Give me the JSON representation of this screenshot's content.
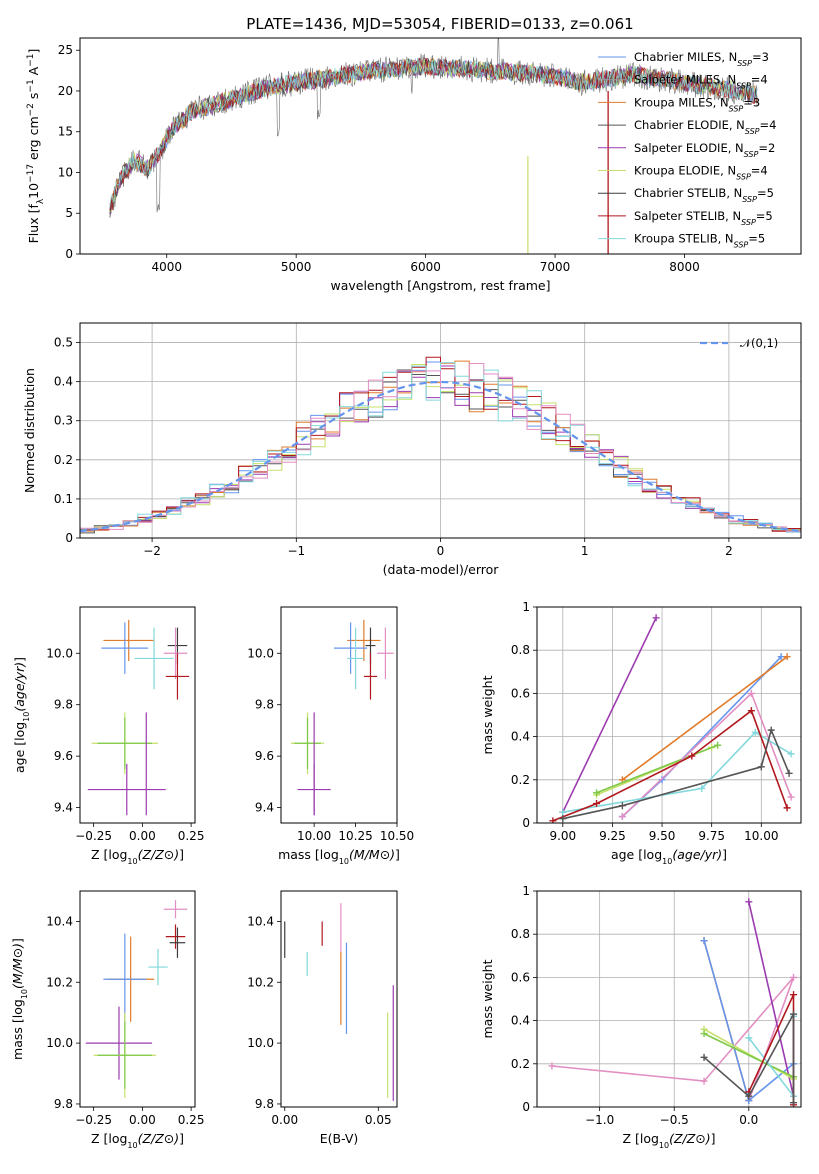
{
  "figure": {
    "title": "PLATE=1436, MJD=53054, FIBERID=0133, z=0.061"
  },
  "colors": [
    "#6495ed",
    "#9e9e9e",
    "#e07b2a",
    "#555555",
    "#9c3ab0",
    "#c6e06a",
    "#3c3c3c",
    "#b0181e",
    "#82d8dc",
    "#e38ec2",
    "#7ec94a"
  ],
  "chart_data": [
    {
      "type": "line",
      "title": "PLATE=1436, MJD=53054, FIBERID=0133, z=0.061",
      "xlabel": "wavelength [Angstrom, rest frame]",
      "ylabel": "Flux [f_λ 10^-17 erg cm^-2 s^-1 A^-1]",
      "xlim": [
        3330,
        8900
      ],
      "ylim": [
        0,
        26.5
      ],
      "xticks": [
        4000,
        5000,
        6000,
        7000,
        8000
      ],
      "yticks": [
        0,
        5,
        10,
        15,
        20,
        25
      ],
      "legend_position": "upper right",
      "continuum": {
        "x": [
          3560,
          3650,
          3750,
          3850,
          3950,
          4050,
          4200,
          4400,
          4600,
          4800,
          5000,
          5200,
          5400,
          5600,
          5800,
          6000,
          6200,
          6400,
          6600,
          6800,
          7000,
          7200,
          7400,
          7600,
          7800,
          8000,
          8200,
          8400,
          8560
        ],
        "y": [
          5.5,
          9.5,
          11.5,
          10.5,
          12.5,
          15.5,
          17.5,
          18.5,
          19.5,
          20.5,
          21.0,
          21.5,
          22.0,
          22.5,
          22.8,
          23.0,
          22.8,
          22.6,
          22.4,
          22.2,
          21.8,
          21.0,
          21.5,
          22.0,
          21.5,
          21.0,
          20.5,
          20.0,
          19.5
        ]
      },
      "series": [
        {
          "name": "Chabrier MILES, N_SSP=3",
          "color": "#6495ed"
        },
        {
          "name": "Salpeter MILES, N_SSP=4",
          "color": "#9e9e9e"
        },
        {
          "name": "Kroupa MILES, N_SSP=3",
          "color": "#e07b2a"
        },
        {
          "name": "Chabrier ELODIE, N_SSP=4",
          "color": "#555555"
        },
        {
          "name": "Salpeter ELODIE, N_SSP=2",
          "color": "#9c3ab0"
        },
        {
          "name": "Kroupa ELODIE, N_SSP=4",
          "color": "#c6e06a"
        },
        {
          "name": "Chabrier STELIB, N_SSP=5",
          "color": "#3c3c3c"
        },
        {
          "name": "Salpeter STELIB, N_SSP=5",
          "color": "#b0181e"
        },
        {
          "name": "Kroupa STELIB, N_SSP=5",
          "color": "#82d8dc"
        }
      ]
    },
    {
      "type": "histogram",
      "xlabel": "(data-model)/error",
      "ylabel": "Normed distribution",
      "xlim": [
        -2.5,
        2.5
      ],
      "ylim": [
        0,
        0.55
      ],
      "xticks": [
        -2,
        -1,
        0,
        1,
        2
      ],
      "xticklabels": [
        "−2",
        "−1",
        "0",
        "1",
        "2"
      ],
      "yticks": [
        0.0,
        0.1,
        0.2,
        0.3,
        0.4,
        0.5
      ],
      "grid": true,
      "legend_position": "upper right",
      "bin_width": 0.1,
      "reference_curve": {
        "name": "𝒩(0,1)",
        "color": "#6495ed",
        "style": "dashed",
        "mean": 0,
        "sigma": 1
      },
      "series": [
        {
          "color": "#6495ed",
          "seed": 1
        },
        {
          "color": "#e07b2a",
          "seed": 2
        },
        {
          "color": "#555555",
          "seed": 3
        },
        {
          "color": "#9c3ab0",
          "seed": 4
        },
        {
          "color": "#c6e06a",
          "seed": 5
        },
        {
          "color": "#b0181e",
          "seed": 6
        },
        {
          "color": "#82d8dc",
          "seed": 7
        },
        {
          "color": "#e38ec2",
          "seed": 8
        }
      ]
    },
    {
      "type": "errorbar",
      "xlabel": "Z [log10(Z/Z⊙)]",
      "ylabel": "age  [log10(age/yr)]",
      "xlim": [
        -0.32,
        0.27
      ],
      "ylim": [
        9.34,
        10.18
      ],
      "xticks": [
        -0.25,
        0.0,
        0.25
      ],
      "xticklabels": [
        "−0.25",
        "0.00",
        "0.25"
      ],
      "yticks": [
        9.4,
        9.6,
        9.8,
        10.0
      ],
      "yticklabels": [
        "9.4",
        "9.6",
        "9.8",
        "10.0"
      ],
      "points": [
        {
          "x": -0.07,
          "y": 10.05,
          "xerr": 0.13,
          "yerr": 0.08,
          "color": "#e07b2a"
        },
        {
          "x": -0.09,
          "y": 10.02,
          "xerr": 0.12,
          "yerr": 0.1,
          "color": "#6495ed"
        },
        {
          "x": 0.18,
          "y": 10.03,
          "xerr": 0.05,
          "yerr": 0.07,
          "color": "#3c3c3c"
        },
        {
          "x": 0.17,
          "y": 10.0,
          "xerr": 0.06,
          "yerr": 0.1,
          "color": "#e38ec2"
        },
        {
          "x": 0.06,
          "y": 9.98,
          "xerr": 0.1,
          "yerr": 0.12,
          "color": "#82d8dc"
        },
        {
          "x": 0.18,
          "y": 9.91,
          "xerr": 0.06,
          "yerr": 0.09,
          "color": "#b0181e"
        },
        {
          "x": -0.09,
          "y": 9.65,
          "xerr": 0.17,
          "yerr": 0.12,
          "color": "#c6e06a"
        },
        {
          "x": -0.09,
          "y": 9.65,
          "xerr": 0.14,
          "yerr": 0.1,
          "color": "#7ec94a"
        },
        {
          "x": -0.08,
          "y": 9.47,
          "xerr": 0.2,
          "yerr": 0.1,
          "color": "#9c3ab0"
        },
        {
          "x": 0.02,
          "y": 9.57,
          "xerr": 0.0,
          "yerr": 0.2,
          "color": "#9c3ab0"
        }
      ]
    },
    {
      "type": "errorbar",
      "xlabel": "mass [log10(M/M⊙)]",
      "ylabel": "",
      "xlim": [
        9.8,
        10.5
      ],
      "ylim": [
        9.34,
        10.18
      ],
      "xticks": [
        10.0,
        10.25,
        10.5
      ],
      "xticklabels": [
        "10.00",
        "10.25",
        "10.50"
      ],
      "yticks": [
        9.4,
        9.6,
        9.8,
        10.0
      ],
      "yticklabels": [
        "9.4",
        "9.6",
        "9.8",
        "10.0"
      ],
      "points": [
        {
          "x": 10.3,
          "y": 10.05,
          "xerr": 0.1,
          "yerr": 0.08,
          "color": "#e07b2a"
        },
        {
          "x": 10.22,
          "y": 10.02,
          "xerr": 0.1,
          "yerr": 0.1,
          "color": "#6495ed"
        },
        {
          "x": 10.34,
          "y": 10.03,
          "xerr": 0.03,
          "yerr": 0.07,
          "color": "#3c3c3c"
        },
        {
          "x": 10.43,
          "y": 10.0,
          "xerr": 0.05,
          "yerr": 0.1,
          "color": "#e38ec2"
        },
        {
          "x": 10.25,
          "y": 9.98,
          "xerr": 0.05,
          "yerr": 0.12,
          "color": "#82d8dc"
        },
        {
          "x": 10.34,
          "y": 9.91,
          "xerr": 0.04,
          "yerr": 0.09,
          "color": "#b0181e"
        },
        {
          "x": 9.96,
          "y": 9.65,
          "xerr": 0.1,
          "yerr": 0.12,
          "color": "#c6e06a"
        },
        {
          "x": 9.96,
          "y": 9.65,
          "xerr": 0.08,
          "yerr": 0.1,
          "color": "#7ec94a"
        },
        {
          "x": 10.0,
          "y": 9.47,
          "xerr": 0.1,
          "yerr": 0.1,
          "color": "#9c3ab0"
        },
        {
          "x": 10.0,
          "y": 9.57,
          "xerr": 0.0,
          "yerr": 0.2,
          "color": "#9c3ab0"
        }
      ]
    },
    {
      "type": "line",
      "xlabel": "age  [log10(age/yr)]",
      "ylabel": "mass weight",
      "xlim": [
        8.87,
        10.2
      ],
      "ylim": [
        0,
        1.0
      ],
      "xticks": [
        9.0,
        9.25,
        9.5,
        9.75,
        10.0
      ],
      "xticklabels": [
        "9.00",
        "9.25",
        "9.50",
        "9.75",
        "10.00"
      ],
      "yticks": [
        0.0,
        0.2,
        0.4,
        0.6,
        0.8,
        1.0
      ],
      "grid": true,
      "series": [
        {
          "color": "#6495ed",
          "x": [
            9.3,
            9.5,
            10.1
          ],
          "y": [
            0.03,
            0.2,
            0.77
          ]
        },
        {
          "color": "#e07b2a",
          "x": [
            9.3,
            10.13
          ],
          "y": [
            0.2,
            0.77
          ]
        },
        {
          "color": "#9c3ab0",
          "x": [
            9.0,
            9.47
          ],
          "y": [
            0.05,
            0.95
          ]
        },
        {
          "color": "#c6e06a",
          "x": [
            9.17,
            9.75
          ],
          "y": [
            0.13,
            0.35
          ]
        },
        {
          "color": "#7ec94a",
          "x": [
            9.17,
            9.78
          ],
          "y": [
            0.14,
            0.36
          ]
        },
        {
          "color": "#e38ec2",
          "x": [
            9.3,
            9.95,
            10.15
          ],
          "y": [
            0.03,
            0.6,
            0.12
          ]
        },
        {
          "color": "#82d8dc",
          "x": [
            9.0,
            9.7,
            9.97,
            10.15
          ],
          "y": [
            0.05,
            0.16,
            0.42,
            0.32
          ]
        },
        {
          "color": "#b0181e",
          "x": [
            8.95,
            9.17,
            9.65,
            9.95,
            10.13
          ],
          "y": [
            0.01,
            0.09,
            0.31,
            0.52,
            0.07
          ]
        },
        {
          "color": "#555555",
          "x": [
            9.0,
            9.3,
            10.0,
            10.05,
            10.14
          ],
          "y": [
            0.02,
            0.08,
            0.26,
            0.43,
            0.23
          ]
        }
      ]
    },
    {
      "type": "errorbar",
      "xlabel": "Z [log10(Z/Z⊙)]",
      "ylabel": "mass [log10(M/M⊙)]",
      "xlim": [
        -0.32,
        0.27
      ],
      "ylim": [
        9.79,
        10.5
      ],
      "xticks": [
        -0.25,
        0.0,
        0.25
      ],
      "xticklabels": [
        "−0.25",
        "0.00",
        "0.25"
      ],
      "yticks": [
        9.8,
        10.0,
        10.2,
        10.4
      ],
      "yticklabels": [
        "9.8",
        "10.0",
        "10.2",
        "10.4"
      ],
      "points": [
        {
          "x": 0.17,
          "y": 10.44,
          "xerr": 0.06,
          "yerr": 0.03,
          "color": "#e38ec2"
        },
        {
          "x": 0.17,
          "y": 10.35,
          "xerr": 0.05,
          "yerr": 0.04,
          "color": "#b0181e"
        },
        {
          "x": 0.18,
          "y": 10.33,
          "xerr": 0.04,
          "yerr": 0.05,
          "color": "#3c3c3c"
        },
        {
          "x": 0.08,
          "y": 10.25,
          "xerr": 0.05,
          "yerr": 0.06,
          "color": "#82d8dc"
        },
        {
          "x": -0.06,
          "y": 10.21,
          "xerr": 0.12,
          "yerr": 0.14,
          "color": "#e07b2a"
        },
        {
          "x": -0.09,
          "y": 10.21,
          "xerr": 0.11,
          "yerr": 0.15,
          "color": "#6495ed"
        },
        {
          "x": -0.12,
          "y": 10.0,
          "xerr": 0.17,
          "yerr": 0.12,
          "color": "#9c3ab0"
        },
        {
          "x": -0.09,
          "y": 9.96,
          "xerr": 0.16,
          "yerr": 0.14,
          "color": "#c6e06a"
        },
        {
          "x": -0.09,
          "y": 9.96,
          "xerr": 0.14,
          "yerr": 0.11,
          "color": "#7ec94a"
        }
      ]
    },
    {
      "type": "errorbar",
      "xlabel": "E(B-V)",
      "ylabel": "",
      "xlim": [
        -0.002,
        0.06
      ],
      "ylim": [
        9.79,
        10.5
      ],
      "xticks": [
        0.0,
        0.05
      ],
      "xticklabels": [
        "0.00",
        "0.05"
      ],
      "yticks": [
        9.8,
        10.0,
        10.2,
        10.4
      ],
      "yticklabels": [
        "9.8",
        "10.0",
        "10.2",
        "10.4"
      ],
      "points": [
        {
          "x": 0.0,
          "y": 10.34,
          "xerr": 0,
          "yerr": 0.06,
          "color": "#3c3c3c"
        },
        {
          "x": 0.012,
          "y": 10.26,
          "xerr": 0,
          "yerr": 0.04,
          "color": "#82d8dc"
        },
        {
          "x": 0.02,
          "y": 10.36,
          "xerr": 0,
          "yerr": 0.04,
          "color": "#b0181e"
        },
        {
          "x": 0.03,
          "y": 10.38,
          "xerr": 0,
          "yerr": 0.08,
          "color": "#e38ec2"
        },
        {
          "x": 0.03,
          "y": 10.18,
          "xerr": 0,
          "yerr": 0.12,
          "color": "#e07b2a"
        },
        {
          "x": 0.033,
          "y": 10.18,
          "xerr": 0,
          "yerr": 0.15,
          "color": "#6495ed"
        },
        {
          "x": 0.055,
          "y": 9.96,
          "xerr": 0,
          "yerr": 0.14,
          "color": "#c6e06a"
        },
        {
          "x": 0.058,
          "y": 10.0,
          "xerr": 0,
          "yerr": 0.19,
          "color": "#9c3ab0"
        }
      ]
    },
    {
      "type": "line",
      "xlabel": "Z [log10(Z/Z⊙)]",
      "ylabel": "mass weight",
      "xlim": [
        -1.42,
        0.35
      ],
      "ylim": [
        0,
        1.0
      ],
      "xticks": [
        -1.0,
        -0.5,
        0.0
      ],
      "xticklabels": [
        "−1.0",
        "−0.5",
        "0.0"
      ],
      "yticks": [
        0.0,
        0.2,
        0.4,
        0.6,
        0.8,
        1.0
      ],
      "grid": true,
      "series": [
        {
          "color": "#e38ec2",
          "x": [
            -1.32,
            -0.3,
            0.3,
            0.0
          ],
          "y": [
            0.19,
            0.12,
            0.6,
            0.03
          ]
        },
        {
          "color": "#e07b2a",
          "x": [
            -0.3,
            0.0
          ],
          "y": [
            0.77,
            0.03
          ]
        },
        {
          "color": "#6495ed",
          "x": [
            -0.3,
            0.0,
            0.3
          ],
          "y": [
            0.77,
            0.03,
            0.2
          ]
        },
        {
          "color": "#9c3ab0",
          "x": [
            0.0,
            0.3
          ],
          "y": [
            0.95,
            0.05
          ]
        },
        {
          "color": "#c6e06a",
          "x": [
            -0.3,
            0.3
          ],
          "y": [
            0.36,
            0.13
          ]
        },
        {
          "color": "#7ec94a",
          "x": [
            -0.3,
            0.3
          ],
          "y": [
            0.34,
            0.14
          ]
        },
        {
          "color": "#82d8dc",
          "x": [
            0.0,
            0.3,
            0.3
          ],
          "y": [
            0.32,
            0.05,
            0.42
          ]
        },
        {
          "color": "#b0181e",
          "x": [
            0.0,
            0.3,
            0.3
          ],
          "y": [
            0.07,
            0.52,
            0.01
          ]
        },
        {
          "color": "#555555",
          "x": [
            -0.3,
            0.0,
            0.3,
            0.3
          ],
          "y": [
            0.23,
            0.05,
            0.43,
            0.02
          ]
        }
      ]
    }
  ]
}
